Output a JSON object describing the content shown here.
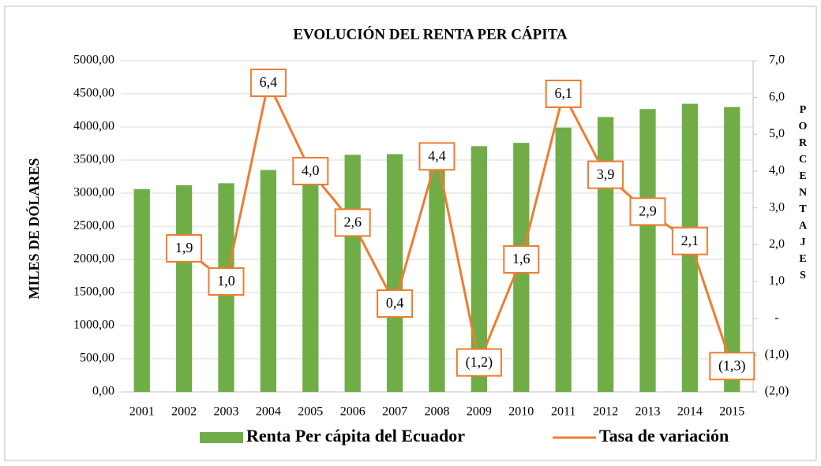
{
  "chart_data": {
    "type": "bar_line",
    "title": "EVOLUCIÓN DEL RENTA  PER CÁPITA",
    "y_label": "MILES DE DÓLARES",
    "y2_label": "PORCENTAJES",
    "categories": [
      "2001",
      "2002",
      "2003",
      "2004",
      "2005",
      "2006",
      "2007",
      "2008",
      "2009",
      "2010",
      "2011",
      "2012",
      "2013",
      "2014",
      "2015"
    ],
    "series": [
      {
        "name": "Renta Per cápita del Ecuador",
        "type": "bar",
        "color": "#70ad47",
        "values": [
          3060,
          3120,
          3150,
          3350,
          3200,
          3580,
          3590,
          3470,
          3710,
          3760,
          3990,
          4150,
          4270,
          4350,
          4300
        ]
      },
      {
        "name": "Tasa de variación",
        "type": "line",
        "color": "#ed7d31",
        "axis": "y2",
        "values": [
          null,
          1.9,
          1.0,
          6.4,
          4.0,
          2.6,
          0.4,
          4.4,
          -1.2,
          1.6,
          6.1,
          3.9,
          2.9,
          2.1,
          -1.3
        ],
        "value_labels": [
          null,
          "1,9",
          "1,0",
          "6,4",
          "4,0",
          "2,6",
          "0,4",
          "4,4",
          "(1,2)",
          "1,6",
          "6,1",
          "3,9",
          "2,9",
          "2,1",
          "(1,3)"
        ]
      }
    ],
    "ylim": [
      0,
      5000
    ],
    "yticks": [
      {
        "value": 0,
        "label": "0,00"
      },
      {
        "value": 500,
        "label": "500,00"
      },
      {
        "value": 1000,
        "label": "1000,00"
      },
      {
        "value": 1500,
        "label": "1500,00"
      },
      {
        "value": 2000,
        "label": "2000,00"
      },
      {
        "value": 2500,
        "label": "2500,00"
      },
      {
        "value": 3000,
        "label": "3000,00"
      },
      {
        "value": 3500,
        "label": "3500,00"
      },
      {
        "value": 4000,
        "label": "4000,00"
      },
      {
        "value": 4500,
        "label": "4500,00"
      },
      {
        "value": 5000,
        "label": "5000,00"
      }
    ],
    "y2lim": [
      -2,
      7
    ],
    "y2ticks": [
      {
        "value": -2,
        "label": "(2,0)"
      },
      {
        "value": -1,
        "label": "(1,0)"
      },
      {
        "value": 0,
        "label": "-"
      },
      {
        "value": 1,
        "label": "1,0"
      },
      {
        "value": 2,
        "label": "2,0"
      },
      {
        "value": 3,
        "label": "3,0"
      },
      {
        "value": 4,
        "label": "4,0"
      },
      {
        "value": 5,
        "label": "5,0"
      },
      {
        "value": 6,
        "label": "6,0"
      },
      {
        "value": 7,
        "label": "7,0"
      }
    ],
    "grid": true
  }
}
